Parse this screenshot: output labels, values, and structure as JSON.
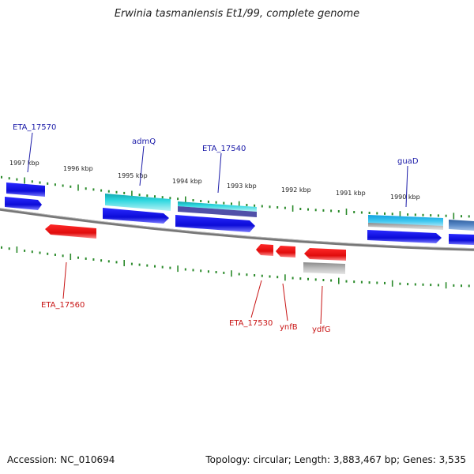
{
  "title": "Erwinia tasmaniensis Et1/99, complete genome",
  "scale_labels": [
    "1997 kbp",
    "1996 kbp",
    "1995 kbp",
    "1994 kbp",
    "1993 kbp",
    "1992 kbp",
    "1991 kbp",
    "1990 kbp"
  ],
  "genes_top": [
    {
      "name": "ETA_17570",
      "color": "#1a1aa8"
    },
    {
      "name": "admQ",
      "color": "#1a1aa8"
    },
    {
      "name": "ETA_17540",
      "color": "#1a1aa8"
    },
    {
      "name": "guaD",
      "color": "#1a1aa8"
    }
  ],
  "genes_bottom": [
    {
      "name": "ETA_17560",
      "color": "#c81414"
    },
    {
      "name": "ETA_17530",
      "color": "#c81414"
    },
    {
      "name": "ynfB",
      "color": "#c81414"
    },
    {
      "name": "ydfG",
      "color": "#c81414"
    }
  ],
  "colors": {
    "forward": "#1414e6",
    "reverse": "#e61414",
    "cyan": "#20c8d8",
    "grey": "#aaaaaa",
    "tick": "#2a8a2a",
    "backbone": "#7a7a7a"
  },
  "footer": {
    "accession": "Accession: NC_010694",
    "summary": "Topology: circular; Length: 3,883,467 bp; Genes: 3,535"
  }
}
